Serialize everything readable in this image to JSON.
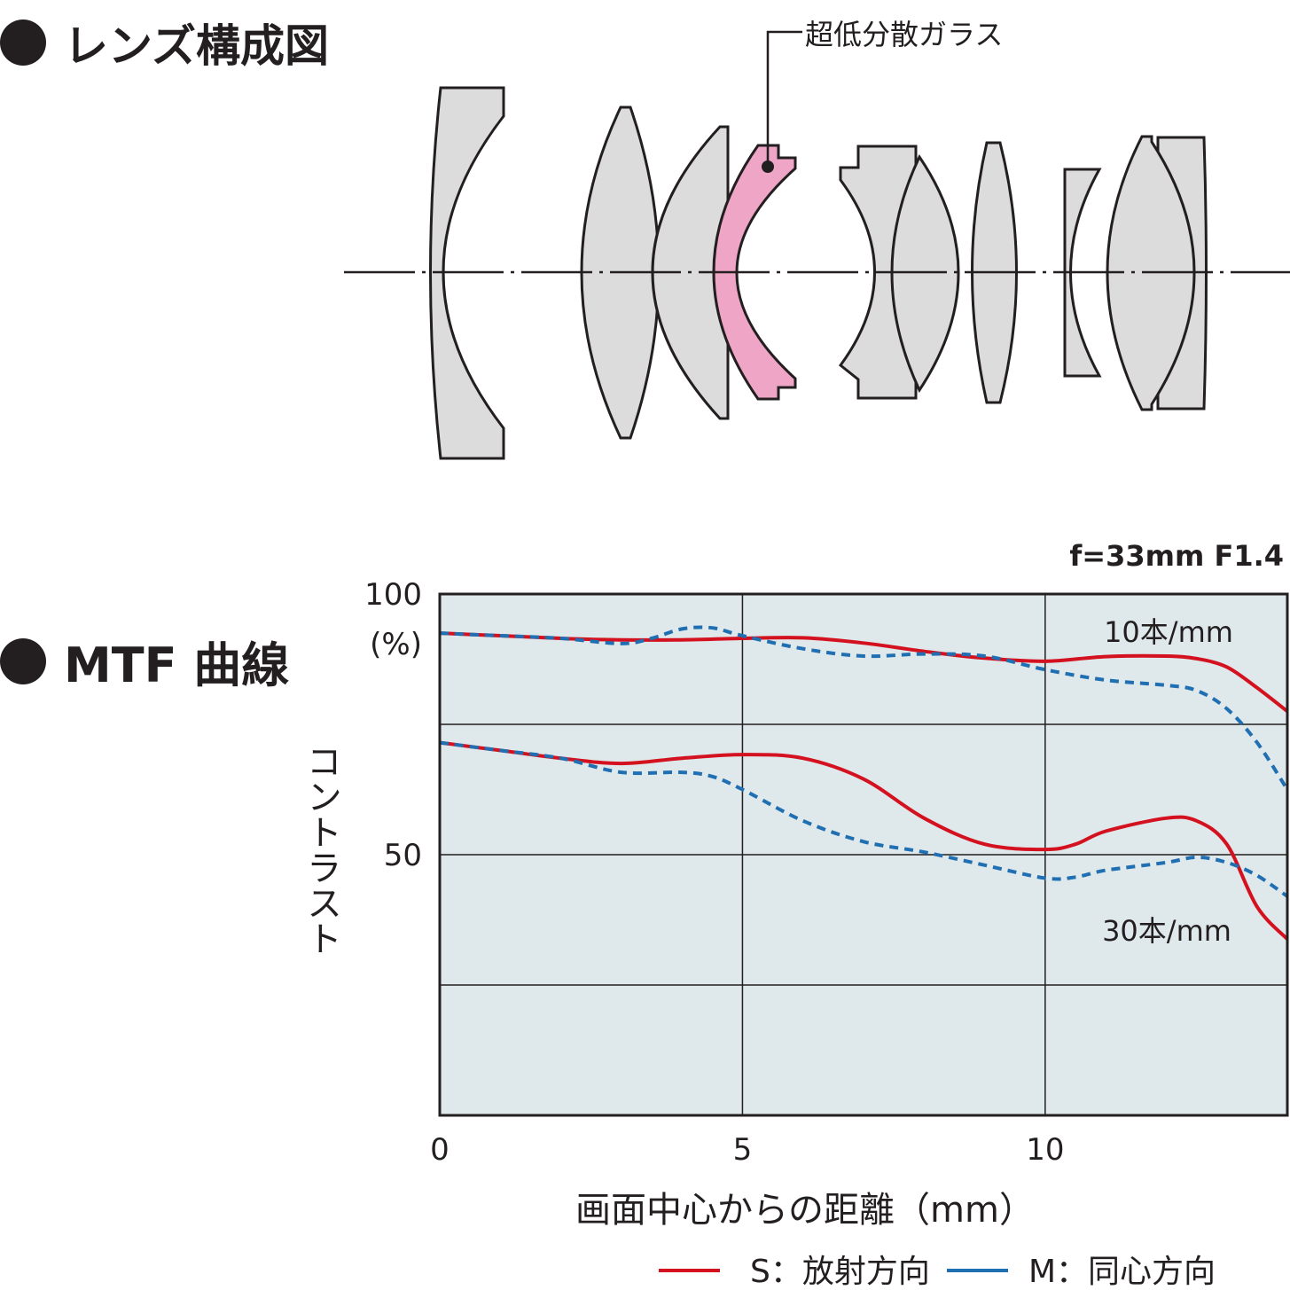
{
  "headings": {
    "lens": "レンズ構成図",
    "mtf": "MTF 曲線"
  },
  "lens_diagram": {
    "callout": "超低分散ガラス",
    "lens_fill": "#dcdcdc",
    "special_fill": "#efa6c6"
  },
  "chart_data": {
    "type": "line",
    "subtitle": "f=33mm F1.4",
    "xlabel": "画面中心からの距離（mm）",
    "ylabel": "コントラスト",
    "y_unit": "(%)",
    "xlim": [
      0,
      14
    ],
    "ylim": [
      0,
      100
    ],
    "x_ticks": [
      "0",
      "5",
      "10"
    ],
    "y_ticks": [
      "100",
      "50"
    ],
    "grid": true,
    "background": "#dfe8ea",
    "annotations": [
      "10本/mm",
      "30本/mm"
    ],
    "legend": {
      "position": "bottom",
      "items": [
        {
          "label": "S：放射方向",
          "color": "#d4111f"
        },
        {
          "label": "M：同心方向",
          "color": "#1f6fb2"
        }
      ]
    },
    "series": [
      {
        "group": "10本/mm",
        "direction": "S",
        "color": "#d4111f",
        "dash": false,
        "x": [
          0,
          1,
          2,
          3,
          4,
          5,
          6,
          7,
          8,
          9,
          10,
          11,
          12,
          12.5,
          13,
          13.5,
          14
        ],
        "y": [
          92.5,
          92,
          91.5,
          91.2,
          91.2,
          91.5,
          91.6,
          90.6,
          89,
          87.7,
          87.1,
          88,
          88.1,
          87.6,
          86,
          82,
          77.5
        ]
      },
      {
        "group": "10本/mm",
        "direction": "M",
        "color": "#1f6fb2",
        "dash": true,
        "x": [
          0,
          1,
          2,
          3,
          3.5,
          4,
          4.5,
          5,
          6,
          7,
          8,
          9,
          10,
          11,
          12,
          12.5,
          13,
          13.5,
          14
        ],
        "y": [
          92.5,
          92,
          91.5,
          90.5,
          91.5,
          93.3,
          93.5,
          92,
          89.5,
          88.1,
          88.5,
          88.1,
          85.5,
          83.5,
          82.5,
          81.5,
          78,
          71.5,
          62.5
        ]
      },
      {
        "group": "30本/mm",
        "direction": "S",
        "color": "#d4111f",
        "dash": false,
        "x": [
          0,
          1,
          2,
          3,
          4,
          5,
          6,
          7,
          8,
          9,
          10,
          10.5,
          11,
          12,
          12.5,
          13,
          13.5,
          14
        ],
        "y": [
          71.5,
          70,
          68.5,
          67.5,
          68.5,
          69.2,
          68.5,
          64.5,
          57,
          52,
          51,
          52,
          54.5,
          57,
          56.5,
          52,
          40,
          33.8
        ]
      },
      {
        "group": "30本/mm",
        "direction": "M",
        "color": "#1f6fb2",
        "dash": true,
        "x": [
          0,
          1,
          2,
          3,
          4,
          4.5,
          5,
          6,
          7,
          8,
          9,
          10,
          10.5,
          11,
          12,
          12.5,
          13,
          13.5,
          14
        ],
        "y": [
          71.5,
          70,
          68.5,
          65.8,
          65.8,
          65,
          62.5,
          56.5,
          52.5,
          50.5,
          48,
          45.5,
          45.7,
          47,
          48.5,
          49.5,
          48.5,
          46,
          42
        ]
      }
    ]
  }
}
